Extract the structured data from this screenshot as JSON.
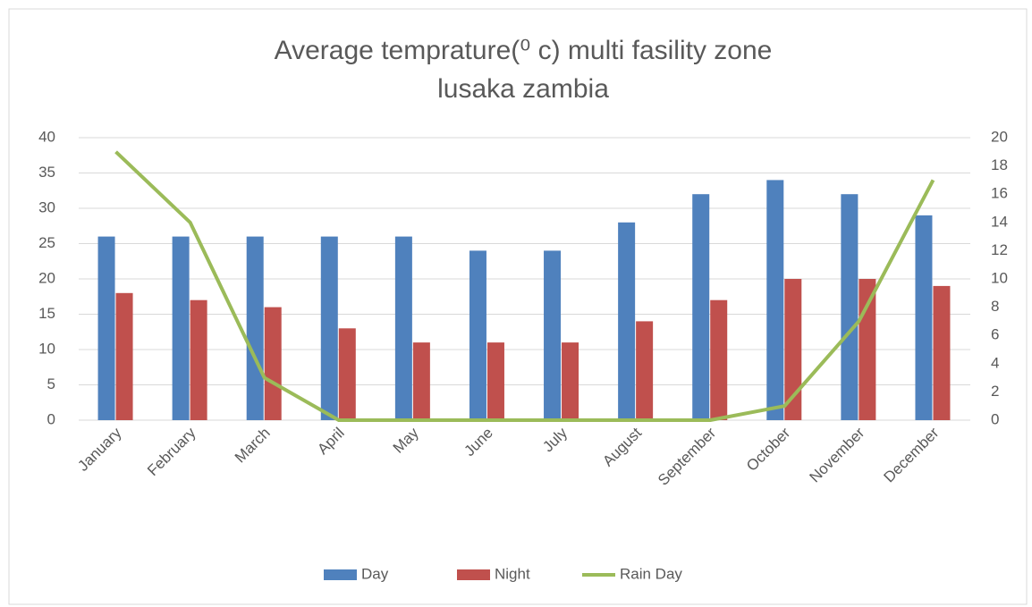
{
  "chart_data": {
    "type": "bar_line",
    "title": [
      "Average temprature(⁰ c)  multi fasility zone",
      "lusaka zambia"
    ],
    "categories": [
      "January",
      "February",
      "March",
      "April",
      "May",
      "June",
      "July",
      "August",
      "September",
      "October",
      "November",
      "December"
    ],
    "series": [
      {
        "name": "Day",
        "color": "#4f81bd",
        "type": "bar",
        "values": [
          26,
          26,
          26,
          26,
          26,
          24,
          24,
          28,
          32,
          34,
          32,
          29
        ]
      },
      {
        "name": "Night",
        "color": "#c0504d",
        "type": "bar",
        "values": [
          18,
          17,
          16,
          13,
          11,
          11,
          11,
          14,
          17,
          20,
          20,
          19
        ]
      },
      {
        "name": "Rain Day",
        "color": "#9bbb59",
        "type": "line",
        "axis": "y2",
        "values": [
          19,
          14,
          3,
          0,
          0,
          0,
          0,
          0,
          0,
          1,
          7,
          17
        ]
      }
    ],
    "ylim": [
      0,
      40
    ],
    "yticks": [
      0,
      5,
      10,
      15,
      20,
      25,
      30,
      35,
      40
    ],
    "y2lim": [
      0,
      20
    ],
    "y2ticks": [
      0,
      2,
      4,
      6,
      8,
      10,
      12,
      14,
      16,
      18,
      20
    ],
    "grid": true,
    "legend": "bottom"
  }
}
